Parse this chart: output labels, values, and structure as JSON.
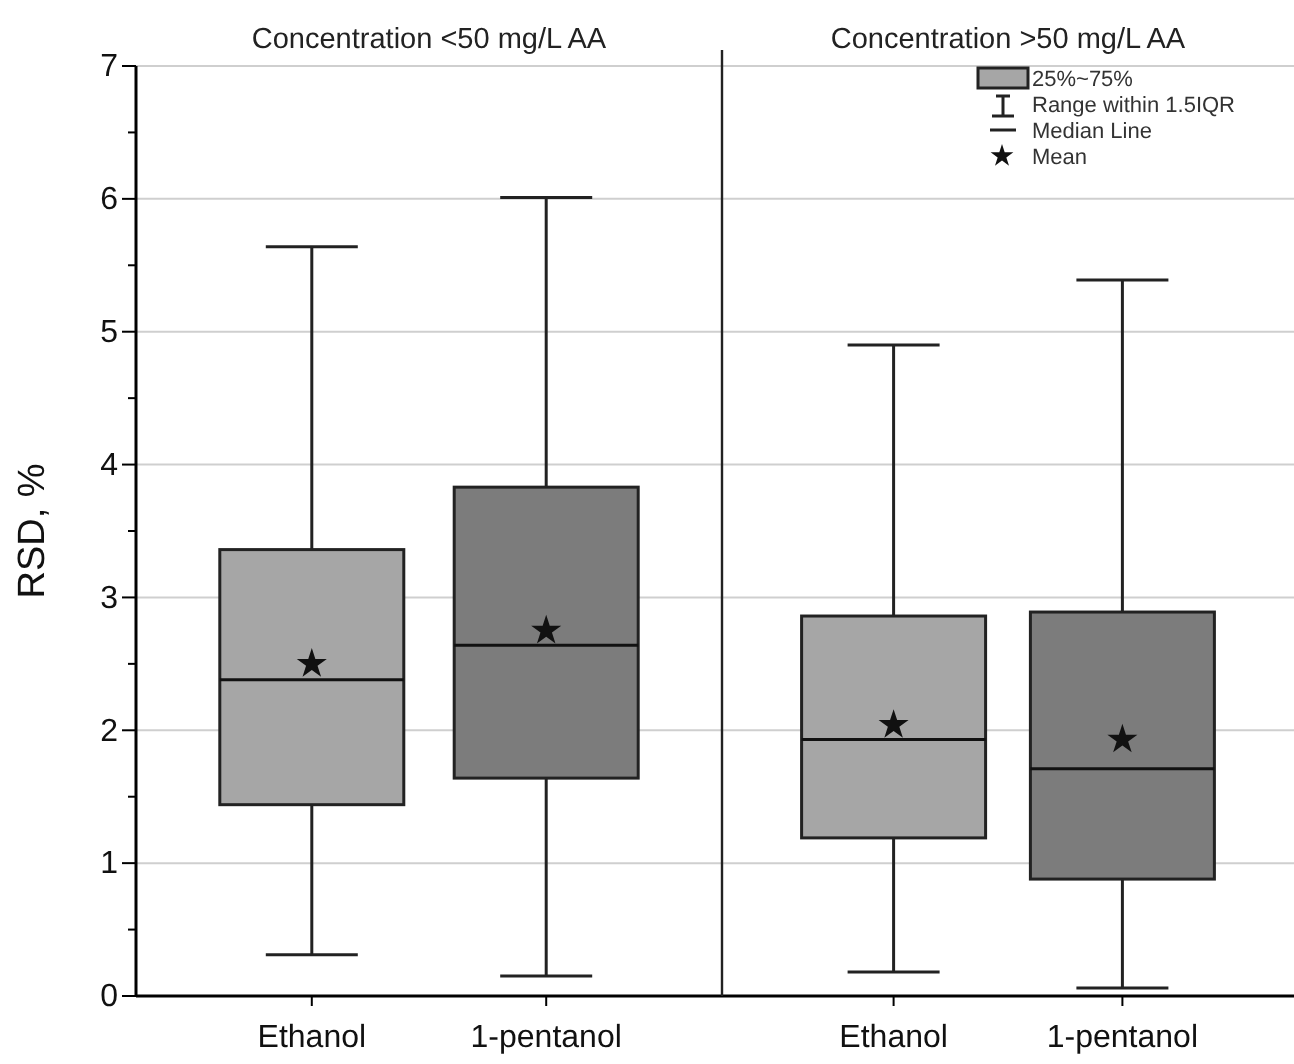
{
  "chart_data": [
    {
      "type": "box",
      "title": "Concentration <50 mg/L AA",
      "ylabel": "RSD, %",
      "categories": [
        "Ethanol",
        "1-pentanol"
      ],
      "colors": [
        "#a6a6a6",
        "#7c7c7c"
      ],
      "boxes": [
        {
          "low": 0.31,
          "q1": 1.44,
          "median": 2.38,
          "q3": 3.36,
          "high": 5.64,
          "mean": 2.5
        },
        {
          "low": 0.15,
          "q1": 1.64,
          "median": 2.64,
          "q3": 3.83,
          "high": 6.01,
          "mean": 2.75
        }
      ],
      "ylim": [
        0,
        7
      ],
      "yticks": [
        0,
        {
          "value": 0.5,
          "label": null
        },
        1,
        {
          "value": 1.5,
          "label": null
        },
        2,
        {
          "value": 2.5,
          "label": null
        },
        3,
        {
          "value": 3.5,
          "label": null
        },
        4,
        {
          "value": 4.5,
          "label": null
        },
        5,
        {
          "value": 5.5,
          "label": null
        },
        6,
        {
          "value": 6.5,
          "label": null
        },
        7
      ],
      "grid": "y",
      "marker": "star"
    },
    {
      "type": "box",
      "title": "Concentration >50 mg/L AA",
      "categories": [
        "Ethanol",
        "1-pentanol"
      ],
      "colors": [
        "#a6a6a6",
        "#7c7c7c"
      ],
      "boxes": [
        {
          "low": 0.18,
          "q1": 1.19,
          "median": 1.93,
          "q3": 2.86,
          "high": 4.9,
          "mean": 2.04
        },
        {
          "low": 0.06,
          "q1": 0.88,
          "median": 1.71,
          "q3": 2.89,
          "high": 5.39,
          "mean": 1.93
        }
      ],
      "ylim": [
        0,
        7
      ],
      "grid": "y",
      "marker": "star",
      "tick_labels": "x",
      "annotations": [
        "25%~75%",
        "Range within 1.5IQR",
        "Median Line",
        "Mean"
      ]
    }
  ]
}
